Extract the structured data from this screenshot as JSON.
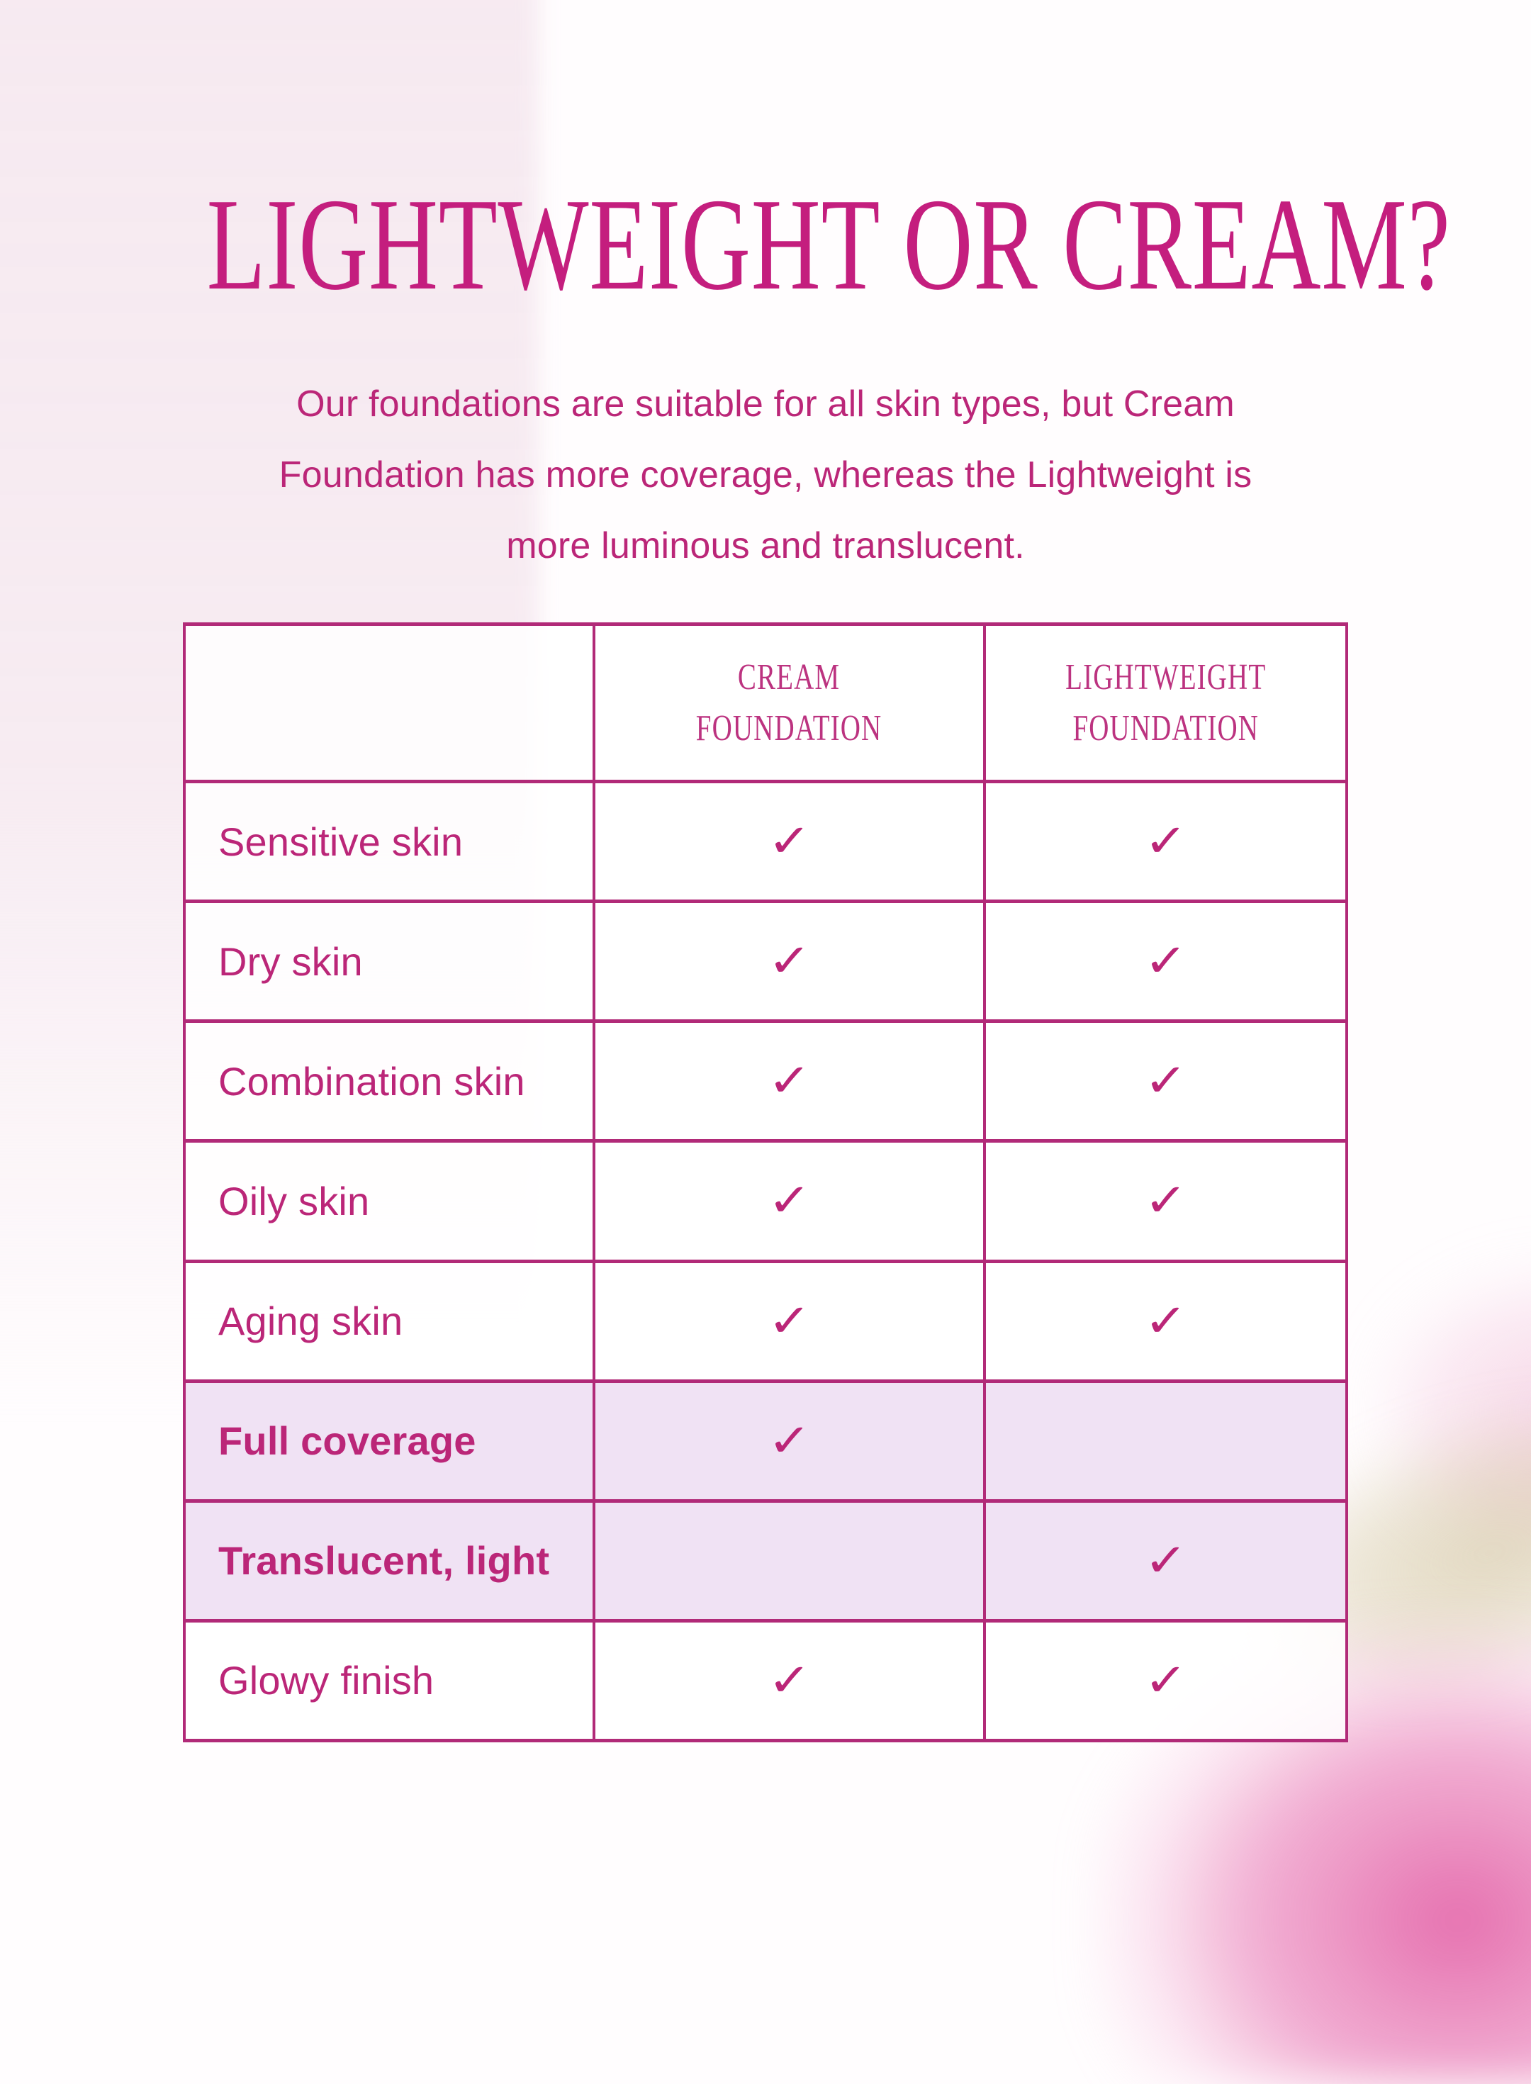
{
  "header": {
    "title": "LIGHTWEIGHT OR CREAM?",
    "subtitle_lines": [
      "Our foundations are suitable for all skin types, but Cream",
      "Foundation has more coverage, whereas the Lightweight is",
      "more luminous and translucent."
    ]
  },
  "table": {
    "column_headers": [
      "",
      "CREAM\nFOUNDATION",
      "LIGHTWEIGHT\nFOUNDATION"
    ],
    "check_glyph": "✓",
    "rows": [
      {
        "label": "Sensitive skin",
        "cream": "✓",
        "lightweight": "✓",
        "emphasis": false
      },
      {
        "label": "Dry skin",
        "cream": "✓",
        "lightweight": "✓",
        "emphasis": false
      },
      {
        "label": "Combination skin",
        "cream": "✓",
        "lightweight": "✓",
        "emphasis": false
      },
      {
        "label": "Oily skin",
        "cream": "✓",
        "lightweight": "✓",
        "emphasis": false
      },
      {
        "label": "Aging skin",
        "cream": "✓",
        "lightweight": "✓",
        "emphasis": false
      },
      {
        "label": "Full coverage",
        "cream": "✓",
        "lightweight": "",
        "emphasis": true
      },
      {
        "label": "Translucent, light",
        "cream": "",
        "lightweight": "✓",
        "emphasis": true
      },
      {
        "label": "Glowy finish",
        "cream": "✓",
        "lightweight": "✓",
        "emphasis": false
      }
    ]
  },
  "colors": {
    "magenta_text": "#bb2678",
    "title_magenta": "#c41e7e",
    "table_border": "#b12a78",
    "highlight_row": "#f0e2f4",
    "bloom_pink": "#e66aac",
    "bloom_tan": "#c9b98b",
    "left_band_pink": "#f6e9f0"
  }
}
